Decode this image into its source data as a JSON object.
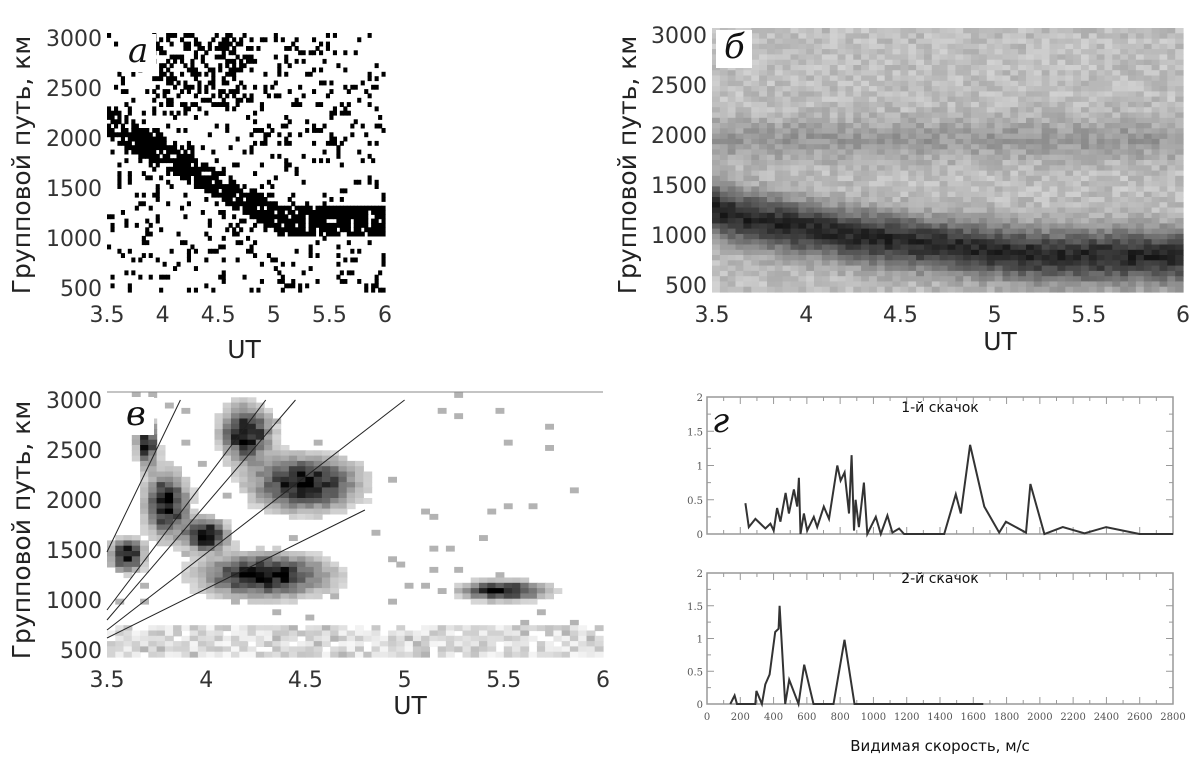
{
  "chart_data": [
    {
      "panel": "а",
      "type": "heatmap",
      "colormap": "binary black/white",
      "ylabel": "Групповой путь, км",
      "xlabel": "UT",
      "xticks": [
        "3.5",
        "4",
        "4.5",
        "5",
        "5.5",
        "6"
      ],
      "yticks": [
        "3000",
        "2500",
        "2000",
        "1500",
        "1000",
        "500"
      ],
      "xlim": [
        3.5,
        6
      ],
      "ylim": [
        500,
        3000
      ]
    },
    {
      "panel": "б",
      "type": "heatmap",
      "colormap": "grayscale",
      "ylabel": "Групповой путь, км",
      "xlabel": "UT",
      "xticks": [
        "3.5",
        "4",
        "4.5",
        "5",
        "5.5",
        "6"
      ],
      "yticks": [
        "3000",
        "2500",
        "2000",
        "1500",
        "1000",
        "500"
      ],
      "xlim": [
        3.5,
        6
      ],
      "ylim": [
        500,
        3000
      ]
    },
    {
      "panel": "в",
      "type": "heatmap",
      "colormap": "grayscale",
      "ylabel": "Групповой путь, км",
      "xlabel": "UT",
      "xticks": [
        "3.5",
        "4",
        "4.5",
        "5",
        "5.5",
        "6"
      ],
      "yticks": [
        "3000",
        "2500",
        "2000",
        "1500",
        "1000",
        "500"
      ],
      "xlim": [
        3.5,
        6
      ],
      "ylim": [
        500,
        3000
      ]
    },
    {
      "panel": "г",
      "type": "line",
      "xlabel": "Видимая скорость, м/с",
      "xlim": [
        0,
        2800
      ],
      "ylim": [
        0,
        2
      ],
      "xticks": [
        "0",
        "200",
        "400",
        "600",
        "800",
        "1000",
        "1200",
        "1400",
        "1600",
        "1800",
        "2000",
        "2200",
        "2400",
        "2600",
        "2800"
      ],
      "yticks": [
        "0",
        "0.5",
        "1",
        "1.5",
        "2"
      ],
      "series": [
        {
          "name": "1-й скачок",
          "x": [
            231,
            251,
            291,
            351,
            381,
            401,
            421,
            441,
            472,
            492,
            522,
            542,
            552,
            562,
            582,
            602,
            642,
            662,
            702,
            733,
            783,
            803,
            827,
            853,
            869,
            883,
            893,
            913,
            943,
            963,
            1014,
            1044,
            1084,
            1114,
            1154,
            1184,
            1425,
            1495,
            1525,
            1581,
            1666,
            1756,
            1796,
            1917,
            1943,
            2027,
            2138,
            2268,
            2398,
            2599,
            2800
          ],
          "y": [
            0.45,
            0.1,
            0.22,
            0.08,
            0.15,
            0.05,
            0.38,
            0.18,
            0.6,
            0.3,
            0.65,
            0.4,
            0.82,
            0.0,
            0.3,
            0.05,
            0.25,
            0.1,
            0.4,
            0.22,
            1.0,
            0.78,
            0.9,
            0.3,
            1.15,
            0.05,
            0.5,
            0.1,
            0.75,
            0.0,
            0.25,
            0.0,
            0.27,
            0.02,
            0.08,
            0.0,
            0.0,
            0.58,
            0.3,
            1.3,
            0.4,
            0.02,
            0.18,
            0.02,
            0.73,
            0.0,
            0.1,
            0.01,
            0.1,
            0.0,
            0.0
          ]
        },
        {
          "name": "2-й скачок",
          "x": [
            140,
            166,
            180,
            290,
            297,
            330,
            350,
            376,
            410,
            430,
            436,
            470,
            494,
            550,
            584,
            640,
            760,
            826,
            886,
            1660
          ],
          "y": [
            0,
            0.13,
            0,
            0,
            0.2,
            0,
            0.3,
            0.45,
            1.1,
            1.15,
            1.5,
            0,
            0.37,
            0,
            0.6,
            0,
            0,
            0.98,
            0,
            0
          ]
        }
      ]
    }
  ],
  "letters": [
    "а",
    "б",
    "в",
    "г"
  ],
  "colors": {
    "line": "#333333",
    "axis": "#999999"
  }
}
